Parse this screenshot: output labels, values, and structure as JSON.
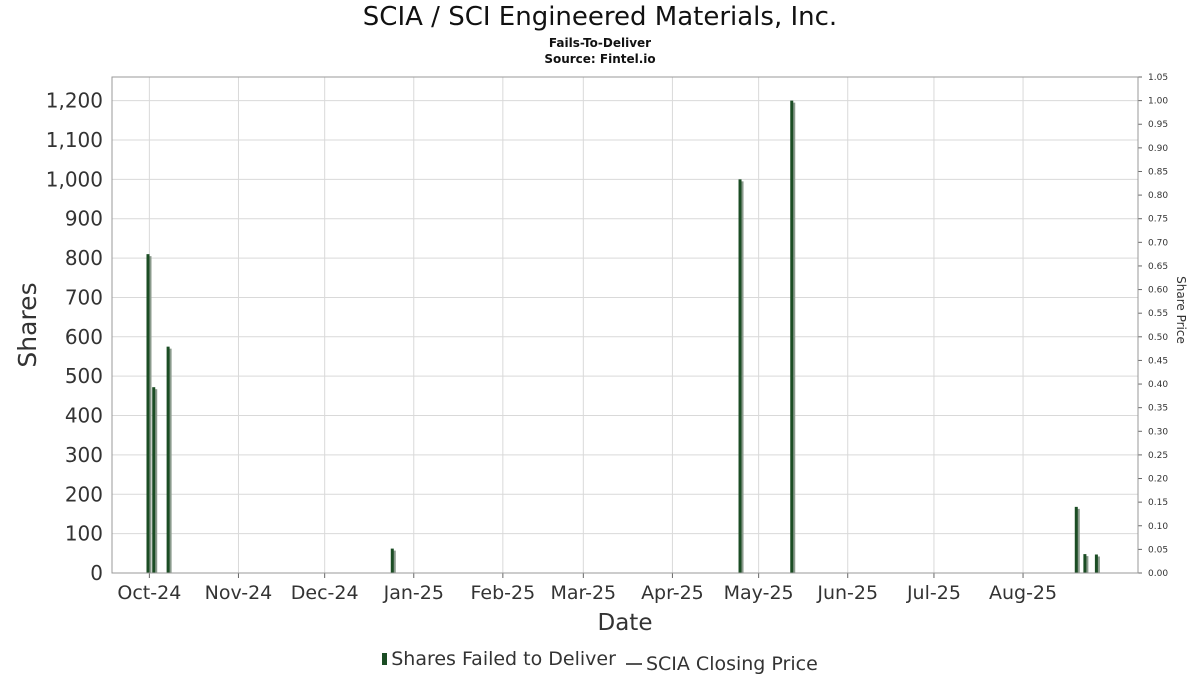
{
  "header": {
    "title": "SCIA / SCI Engineered Materials, Inc.",
    "subtitle": "Fails-To-Deliver",
    "source": "Source: Fintel.io"
  },
  "legend": {
    "ftd_label": "Shares Failed to Deliver",
    "price_label": "SCIA Closing Price"
  },
  "colors": {
    "bar": "#1b4d24",
    "bar_shadow": "#8a9a8c",
    "grid": "#d9d9d9",
    "frame": "#999999",
    "price_line": "#555555"
  },
  "chart_data": {
    "type": "bar",
    "title": "SCIA / SCI Engineered Materials, Inc.",
    "subtitle": "Fails-To-Deliver",
    "xlabel": "Date",
    "ylabel": "Shares",
    "y2label": "Share Price",
    "x_ticks": [
      "Oct-24",
      "Nov-24",
      "Dec-24",
      "Jan-25",
      "Feb-25",
      "Mar-25",
      "Apr-25",
      "May-25",
      "Jun-25",
      "Jul-25",
      "Aug-25"
    ],
    "xlim": [
      "2024-09-18",
      "2025-09-10"
    ],
    "ylim": [
      0,
      1260
    ],
    "y_ticks": [
      0,
      100,
      200,
      300,
      400,
      500,
      600,
      700,
      800,
      900,
      1000,
      1100,
      1200
    ],
    "y2lim": [
      0,
      1.05
    ],
    "y2_ticks": [
      0.0,
      0.05,
      0.1,
      0.15,
      0.2,
      0.25,
      0.3,
      0.35,
      0.4,
      0.45,
      0.5,
      0.55,
      0.6,
      0.65,
      0.7,
      0.75,
      0.8,
      0.85,
      0.9,
      0.95,
      1.0,
      1.05
    ],
    "grid": true,
    "legend_position": "bottom",
    "series": [
      {
        "name": "Shares Failed to Deliver",
        "points": [
          {
            "date": "2024-09-30",
            "value": 810
          },
          {
            "date": "2024-10-02",
            "value": 472
          },
          {
            "date": "2024-10-07",
            "value": 575
          },
          {
            "date": "2024-12-24",
            "value": 62
          },
          {
            "date": "2025-04-24",
            "value": 1000
          },
          {
            "date": "2025-05-12",
            "value": 1200
          },
          {
            "date": "2025-08-19",
            "value": 168
          },
          {
            "date": "2025-08-22",
            "value": 48
          },
          {
            "date": "2025-08-26",
            "value": 47
          }
        ]
      },
      {
        "name": "SCIA Closing Price",
        "points": []
      }
    ]
  }
}
